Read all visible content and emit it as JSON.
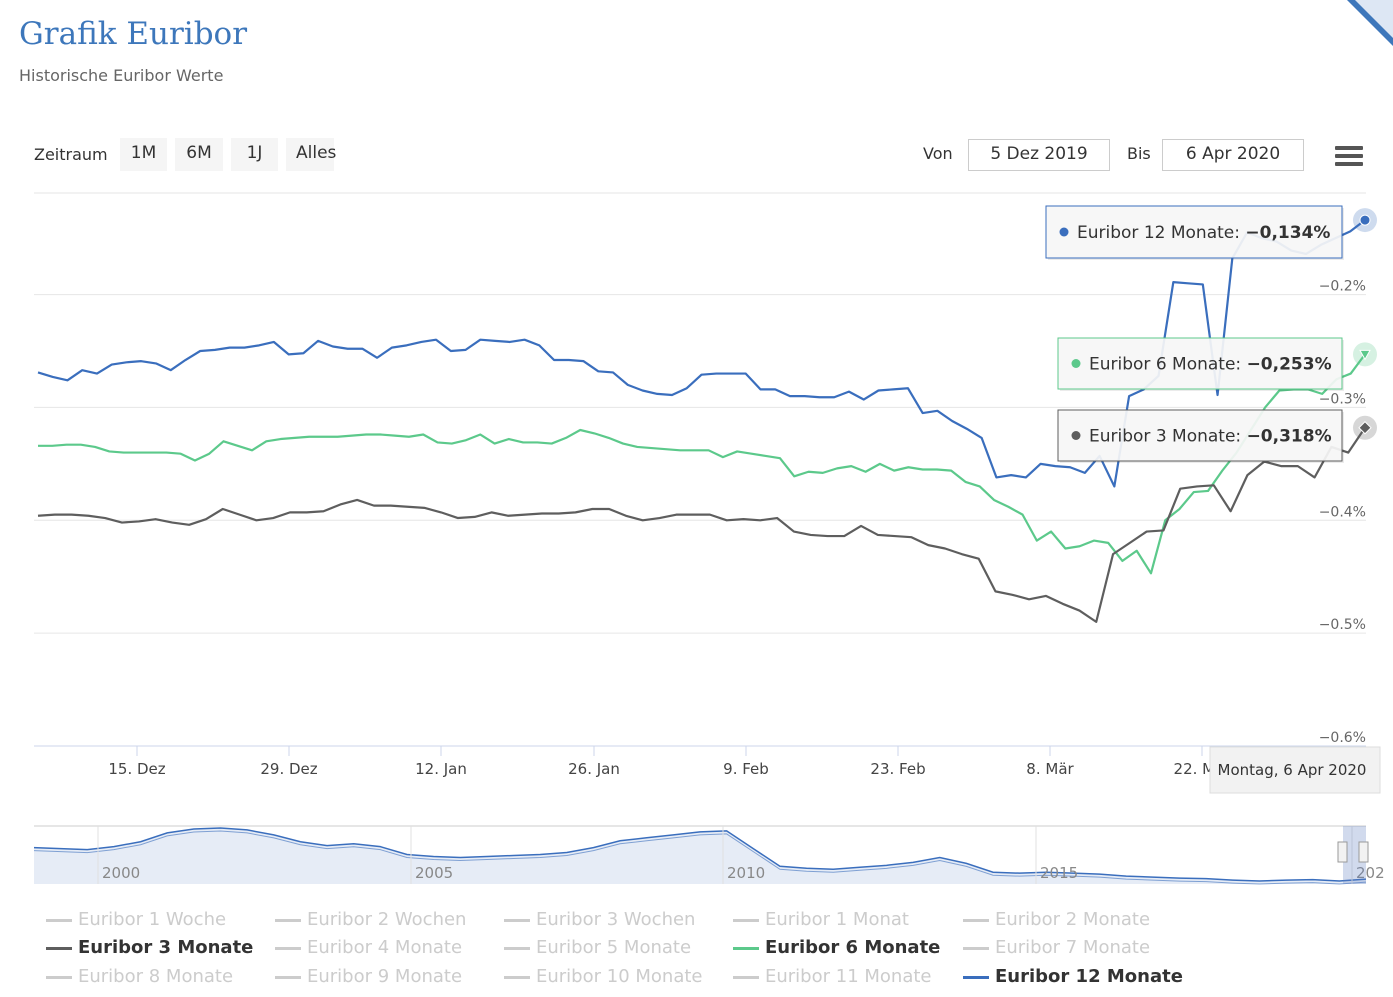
{
  "header": {
    "title": "Grafik Euribor",
    "subtitle": "Historische Euribor Werte"
  },
  "toolbar": {
    "zoom_label": "Zeitraum",
    "zoom_buttons": [
      "1M",
      "6M",
      "1J",
      "Alles"
    ],
    "from_label": "Von",
    "from_value": "5 Dez 2019",
    "to_label": "Bis",
    "to_value": "6 Apr 2020"
  },
  "chart_data": {
    "type": "line",
    "y_ticks": [
      "−0.2%",
      "−0.3%",
      "−0.4%",
      "−0.5%",
      "−0.6%"
    ],
    "ylim": [
      -0.6,
      -0.11
    ],
    "x_ticks": [
      "15. Dez",
      "29. Dez",
      "12. Jan",
      "26. Jan",
      "9. Feb",
      "23. Feb",
      "8. Mär",
      "22. Mär"
    ],
    "grid": true,
    "series": [
      {
        "name": "Euribor 12 Monate",
        "color": "#3a6ebd",
        "values": [
          -0.269,
          -0.273,
          -0.276,
          -0.267,
          -0.27,
          -0.262,
          -0.26,
          -0.259,
          -0.261,
          -0.267,
          -0.258,
          -0.25,
          -0.249,
          -0.247,
          -0.247,
          -0.245,
          -0.242,
          -0.253,
          -0.252,
          -0.241,
          -0.246,
          -0.248,
          -0.248,
          -0.256,
          -0.247,
          -0.245,
          -0.242,
          -0.24,
          -0.25,
          -0.249,
          -0.24,
          -0.241,
          -0.242,
          -0.24,
          -0.245,
          -0.258,
          -0.258,
          -0.259,
          -0.268,
          -0.269,
          -0.28,
          -0.285,
          -0.288,
          -0.289,
          -0.283,
          -0.271,
          -0.27,
          -0.27,
          -0.27,
          -0.284,
          -0.284,
          -0.29,
          -0.29,
          -0.291,
          -0.291,
          -0.286,
          -0.293,
          -0.285,
          -0.284,
          -0.283,
          -0.305,
          -0.303,
          -0.312,
          -0.319,
          -0.327,
          -0.362,
          -0.36,
          -0.362,
          -0.35,
          -0.352,
          -0.353,
          -0.358,
          -0.343,
          -0.37,
          -0.29,
          -0.284,
          -0.272,
          -0.189,
          -0.19,
          -0.191,
          -0.289,
          -0.168,
          -0.145,
          -0.15,
          -0.153,
          -0.161,
          -0.164,
          -0.156,
          -0.15,
          -0.144,
          -0.134
        ]
      },
      {
        "name": "Euribor 6 Monate",
        "color": "#5cc98b",
        "values": [
          -0.334,
          -0.334,
          -0.333,
          -0.333,
          -0.335,
          -0.339,
          -0.34,
          -0.34,
          -0.34,
          -0.34,
          -0.341,
          -0.347,
          -0.341,
          -0.33,
          -0.334,
          -0.338,
          -0.33,
          -0.328,
          -0.327,
          -0.326,
          -0.326,
          -0.326,
          -0.325,
          -0.324,
          -0.324,
          -0.325,
          -0.326,
          -0.324,
          -0.331,
          -0.332,
          -0.329,
          -0.324,
          -0.332,
          -0.328,
          -0.331,
          -0.331,
          -0.332,
          -0.327,
          -0.32,
          -0.323,
          -0.327,
          -0.332,
          -0.335,
          -0.336,
          -0.337,
          -0.338,
          -0.338,
          -0.338,
          -0.344,
          -0.339,
          -0.341,
          -0.343,
          -0.345,
          -0.361,
          -0.357,
          -0.358,
          -0.354,
          -0.352,
          -0.357,
          -0.35,
          -0.356,
          -0.353,
          -0.355,
          -0.355,
          -0.356,
          -0.366,
          -0.37,
          -0.382,
          -0.388,
          -0.395,
          -0.418,
          -0.41,
          -0.425,
          -0.423,
          -0.418,
          -0.42,
          -0.436,
          -0.427,
          -0.447,
          -0.4,
          -0.39,
          -0.375,
          -0.374,
          -0.356,
          -0.34,
          -0.32,
          -0.3,
          -0.285,
          -0.284,
          -0.284,
          -0.288,
          -0.275,
          -0.27,
          -0.253
        ]
      },
      {
        "name": "Euribor 3 Monate",
        "color": "#5e5e5e",
        "values": [
          -0.396,
          -0.395,
          -0.395,
          -0.396,
          -0.398,
          -0.402,
          -0.401,
          -0.399,
          -0.402,
          -0.404,
          -0.399,
          -0.39,
          -0.395,
          -0.4,
          -0.398,
          -0.393,
          -0.393,
          -0.392,
          -0.386,
          -0.382,
          -0.387,
          -0.387,
          -0.388,
          -0.389,
          -0.393,
          -0.398,
          -0.397,
          -0.393,
          -0.396,
          -0.395,
          -0.394,
          -0.394,
          -0.393,
          -0.39,
          -0.39,
          -0.396,
          -0.4,
          -0.398,
          -0.395,
          -0.395,
          -0.395,
          -0.4,
          -0.399,
          -0.4,
          -0.398,
          -0.41,
          -0.413,
          -0.414,
          -0.414,
          -0.405,
          -0.413,
          -0.414,
          -0.415,
          -0.422,
          -0.425,
          -0.43,
          -0.434,
          -0.463,
          -0.466,
          -0.47,
          -0.467,
          -0.474,
          -0.48,
          -0.49,
          -0.43,
          -0.42,
          -0.41,
          -0.409,
          -0.372,
          -0.37,
          -0.369,
          -0.392,
          -0.36,
          -0.348,
          -0.352,
          -0.352,
          -0.362,
          -0.335,
          -0.34,
          -0.318
        ]
      }
    ],
    "tooltips": [
      {
        "label": "Euribor 12 Monate",
        "value": "−0,134%",
        "color": "#3a6ebd"
      },
      {
        "label": "Euribor 6 Monate",
        "value": "−0,253%",
        "color": "#5cc98b"
      },
      {
        "label": "Euribor 3 Monate",
        "value": "−0,318%",
        "color": "#5e5e5e"
      }
    ],
    "crosshair_label": "Montag, 6 Apr 2020",
    "navigator": {
      "x_ticks": [
        "2000",
        "2005",
        "2010",
        "2015",
        "202"
      ],
      "values": [
        3.1,
        3.0,
        2.9,
        3.2,
        3.7,
        4.6,
        5.0,
        5.1,
        4.9,
        4.4,
        3.7,
        3.3,
        3.5,
        3.2,
        2.4,
        2.2,
        2.1,
        2.2,
        2.3,
        2.4,
        2.6,
        3.1,
        3.8,
        4.1,
        4.4,
        4.7,
        4.8,
        3.0,
        1.2,
        1.0,
        0.9,
        1.1,
        1.3,
        1.6,
        2.1,
        1.5,
        0.6,
        0.5,
        0.6,
        0.5,
        0.4,
        0.2,
        0.1,
        0.0,
        -0.05,
        -0.2,
        -0.3,
        -0.2,
        -0.15,
        -0.3,
        -0.1
      ]
    }
  },
  "legend": {
    "items": [
      {
        "label": "Euribor 1 Woche",
        "active": false
      },
      {
        "label": "Euribor 2 Wochen",
        "active": false
      },
      {
        "label": "Euribor 3 Wochen",
        "active": false
      },
      {
        "label": "Euribor 1 Monat",
        "active": false
      },
      {
        "label": "Euribor 2 Monate",
        "active": false
      },
      {
        "label": "Euribor 3 Monate",
        "active": true,
        "color": "#5e5e5e"
      },
      {
        "label": "Euribor 4 Monate",
        "active": false
      },
      {
        "label": "Euribor 5 Monate",
        "active": false
      },
      {
        "label": "Euribor 6 Monate",
        "active": true,
        "color": "#5cc98b"
      },
      {
        "label": "Euribor 7 Monate",
        "active": false
      },
      {
        "label": "Euribor 8 Monate",
        "active": false
      },
      {
        "label": "Euribor 9 Monate",
        "active": false
      },
      {
        "label": "Euribor 10 Monate",
        "active": false
      },
      {
        "label": "Euribor 11 Monate",
        "active": false
      },
      {
        "label": "Euribor 12 Monate",
        "active": true,
        "color": "#3a6ebd"
      }
    ]
  }
}
